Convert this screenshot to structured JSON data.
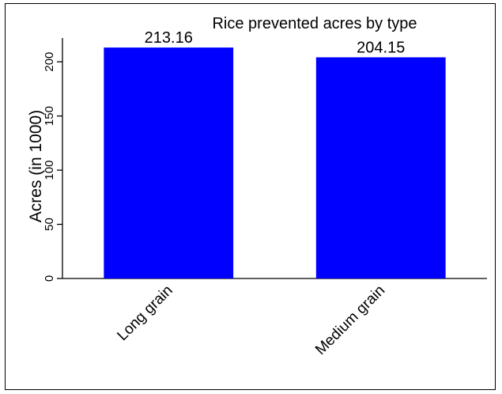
{
  "chart_data": {
    "type": "bar",
    "title": "Rice prevented acres by type",
    "ylabel": "Acres (in 1000)",
    "xlabel": "",
    "categories": [
      "Long grain",
      "Medium grain"
    ],
    "values": [
      213.16,
      204.15
    ],
    "value_labels": [
      "213.16",
      "204.15"
    ],
    "ylim": [
      0,
      222
    ],
    "yticks": [
      0,
      50,
      100,
      150,
      200
    ],
    "ytick_labels": [
      "0",
      "50",
      "100",
      "150",
      "200"
    ],
    "bar_color": "#0000ff",
    "grid": false,
    "legend": "none"
  }
}
